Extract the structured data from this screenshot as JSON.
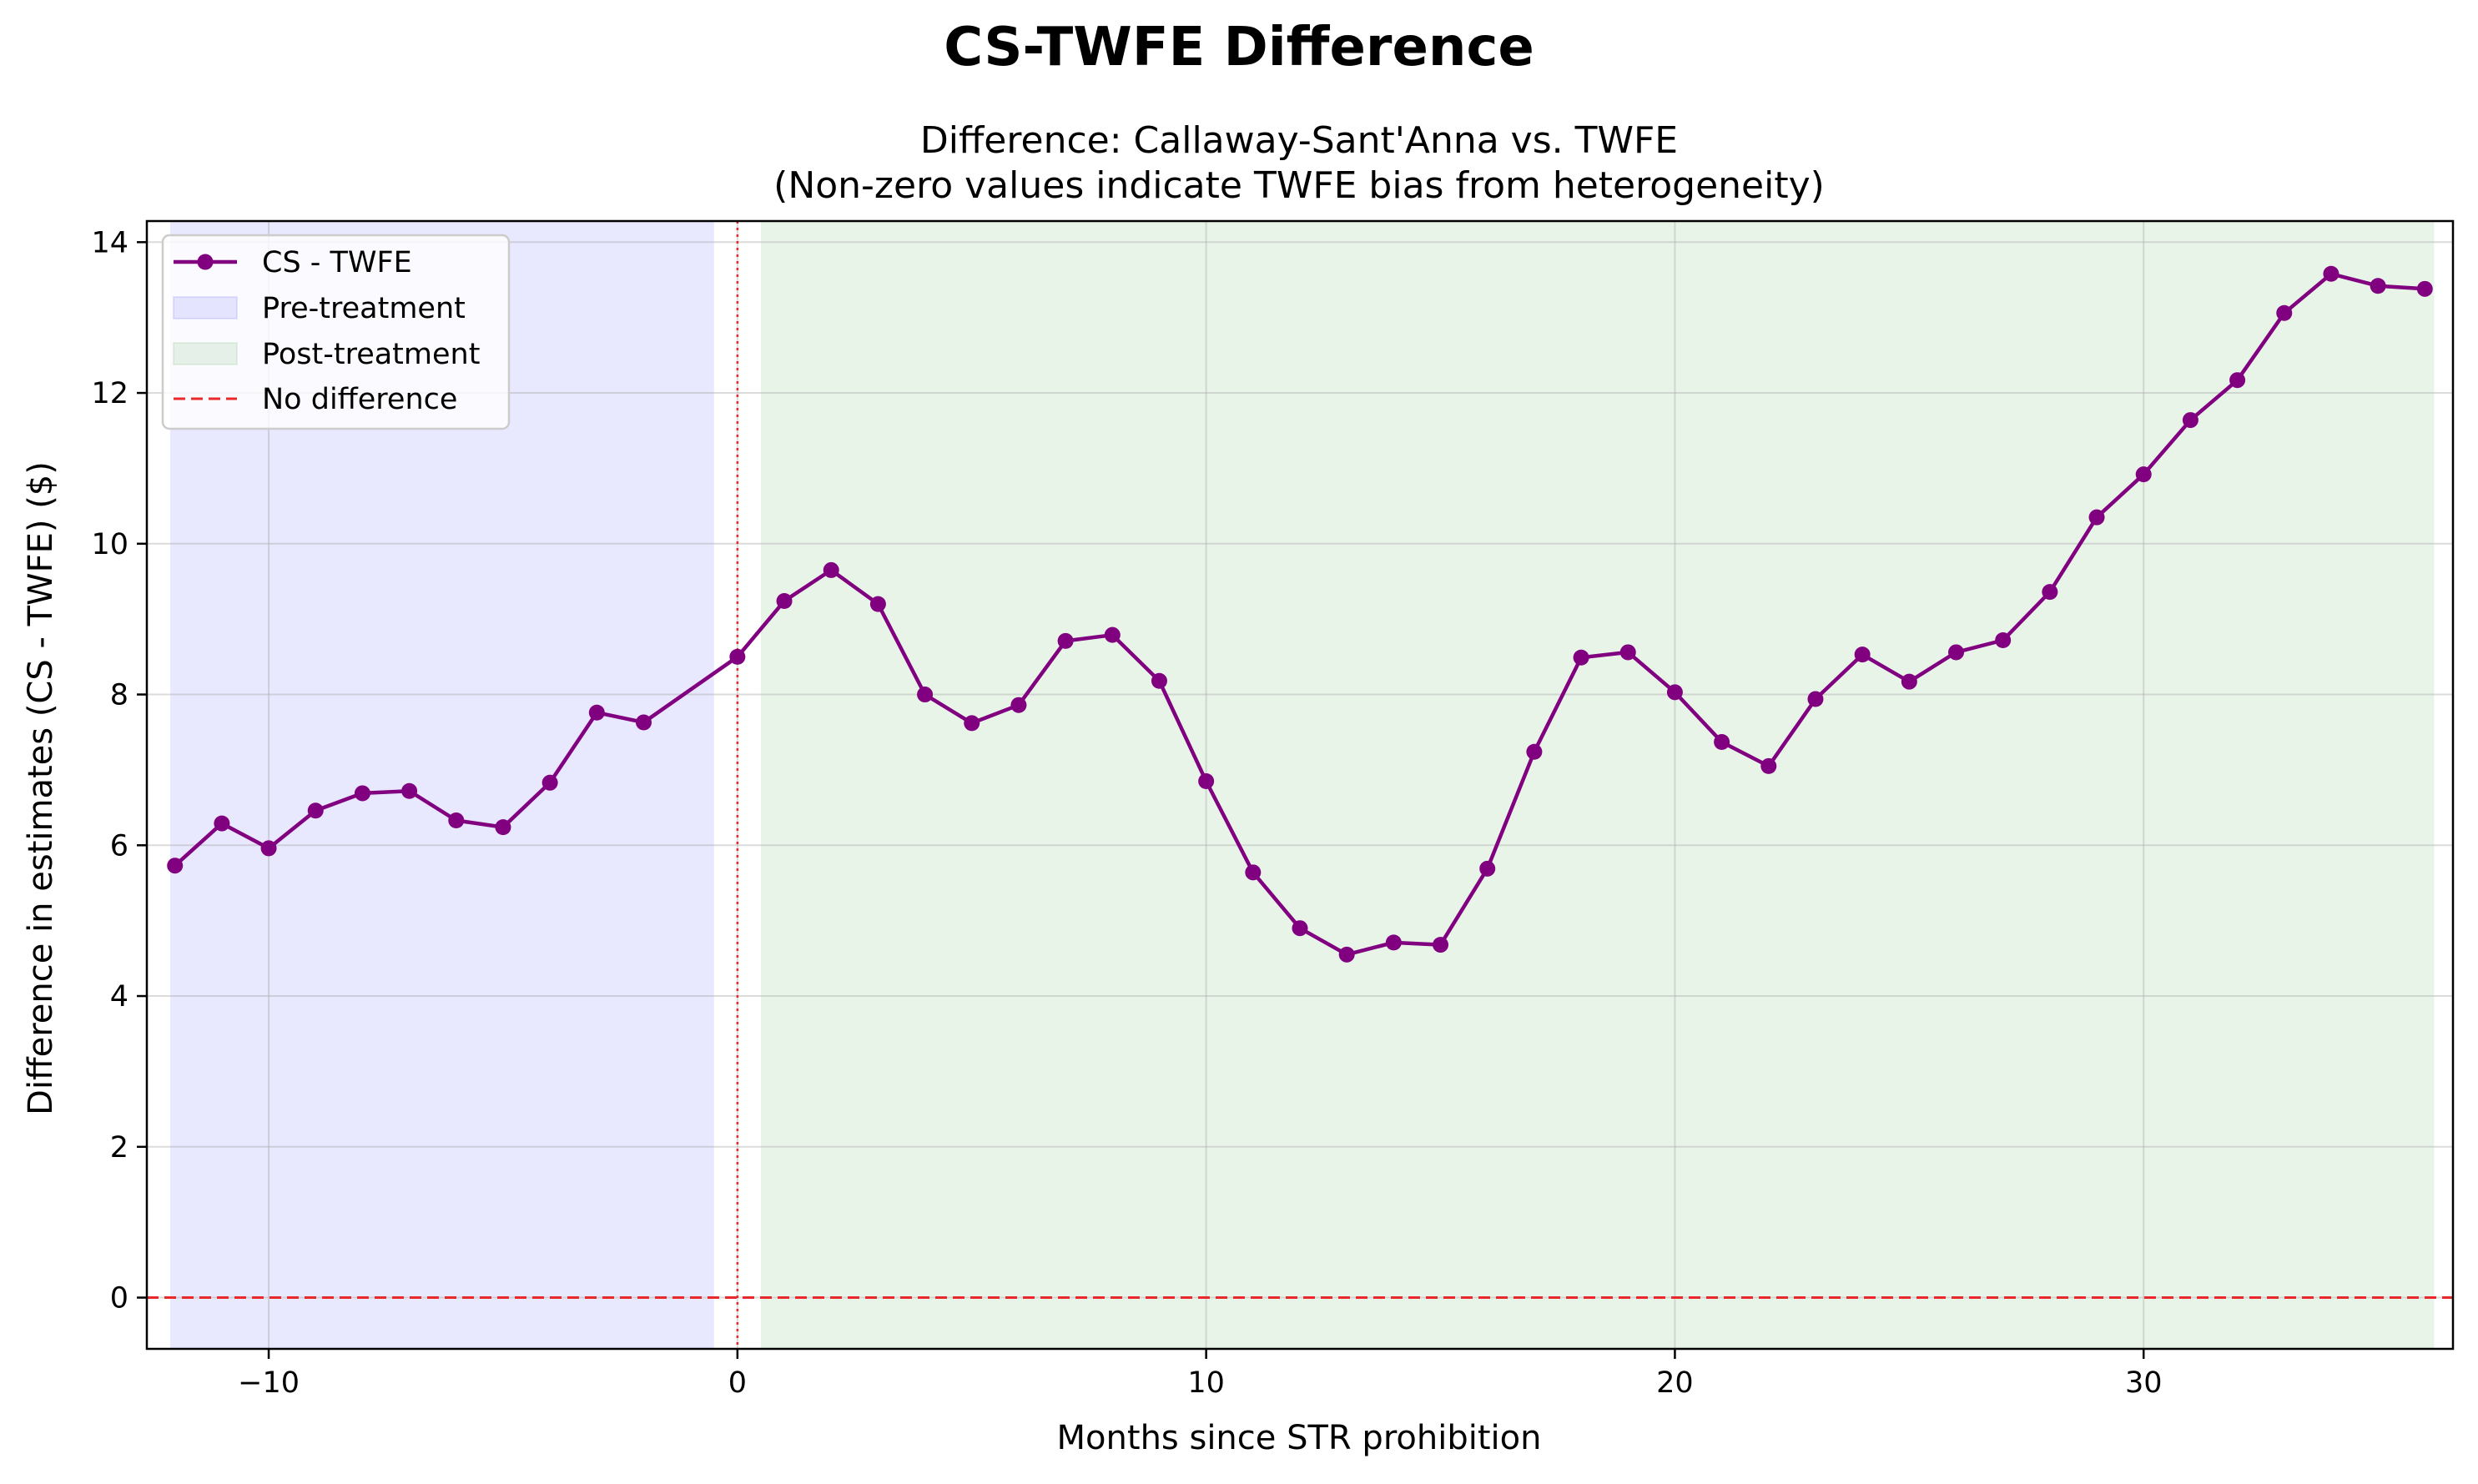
{
  "chart_data": {
    "type": "line",
    "suptitle": "CS-TWFE Difference",
    "title_lines": [
      "Difference: Callaway-Sant'Anna vs. TWFE",
      "(Non-zero values indicate TWFE bias from heterogeneity)"
    ],
    "xlabel": "Months since STR prohibition",
    "ylabel": "Difference in estimates (CS - TWFE) ($)",
    "xlim": [
      -12.6,
      36.6
    ],
    "ylim": [
      -0.68,
      14.28
    ],
    "xticks": [
      -10,
      0,
      10,
      20,
      30
    ],
    "xtick_labels": [
      "−10",
      "0",
      "10",
      "20",
      "30"
    ],
    "yticks": [
      0,
      2,
      4,
      6,
      8,
      10,
      12,
      14
    ],
    "ytick_labels": [
      "0",
      "2",
      "4",
      "6",
      "8",
      "10",
      "12",
      "14"
    ],
    "grid": true,
    "legend_position": "upper-left",
    "series": [
      {
        "name": "CS - TWFE",
        "color": "#800080",
        "marker": "circle",
        "x": [
          -12,
          -11,
          -10,
          -9,
          -8,
          -7,
          -6,
          -5,
          -4,
          -3,
          -2,
          0,
          1,
          2,
          3,
          4,
          5,
          6,
          7,
          8,
          9,
          10,
          11,
          12,
          13,
          14,
          15,
          16,
          17,
          18,
          19,
          20,
          21,
          22,
          23,
          24,
          25,
          26,
          27,
          28,
          29,
          30,
          31,
          32,
          33,
          34,
          35,
          36
        ],
        "y": [
          5.73,
          6.29,
          5.96,
          6.46,
          6.69,
          6.72,
          6.33,
          6.24,
          6.83,
          7.76,
          7.63,
          8.5,
          9.24,
          9.65,
          9.2,
          8.0,
          7.62,
          7.86,
          8.71,
          8.79,
          8.18,
          6.85,
          5.64,
          4.9,
          4.55,
          4.71,
          4.68,
          5.69,
          7.24,
          8.49,
          8.56,
          8.03,
          7.37,
          7.05,
          7.94,
          8.53,
          8.17,
          8.56,
          8.72,
          9.36,
          10.35,
          10.92,
          11.64,
          12.17,
          13.06,
          13.58,
          13.42,
          13.38
        ]
      }
    ],
    "shaded_regions": [
      {
        "name": "Pre-treatment",
        "x_range": [
          -12.1,
          -0.5
        ],
        "color": "#0000ff",
        "opacity": 0.09
      },
      {
        "name": "Post-treatment",
        "x_range": [
          0.5,
          36.2
        ],
        "color": "#008000",
        "opacity": 0.085
      }
    ],
    "reference_lines": [
      {
        "name": "No difference",
        "orientation": "horizontal",
        "value": 0,
        "color": "#e8282b",
        "style": "dashed",
        "in_legend": true
      },
      {
        "name": "treatment-start",
        "orientation": "vertical",
        "value": 0,
        "color": "#e8282b",
        "style": "dotted",
        "in_legend": false
      }
    ],
    "legend": [
      {
        "label": "CS - TWFE",
        "kind": "line-marker",
        "color": "#800080"
      },
      {
        "label": "Pre-treatment",
        "kind": "patch",
        "color": "#0000ff"
      },
      {
        "label": "Post-treatment",
        "kind": "patch",
        "color": "#008000"
      },
      {
        "label": "No difference",
        "kind": "dashed-line",
        "color": "#e8282b"
      }
    ]
  }
}
